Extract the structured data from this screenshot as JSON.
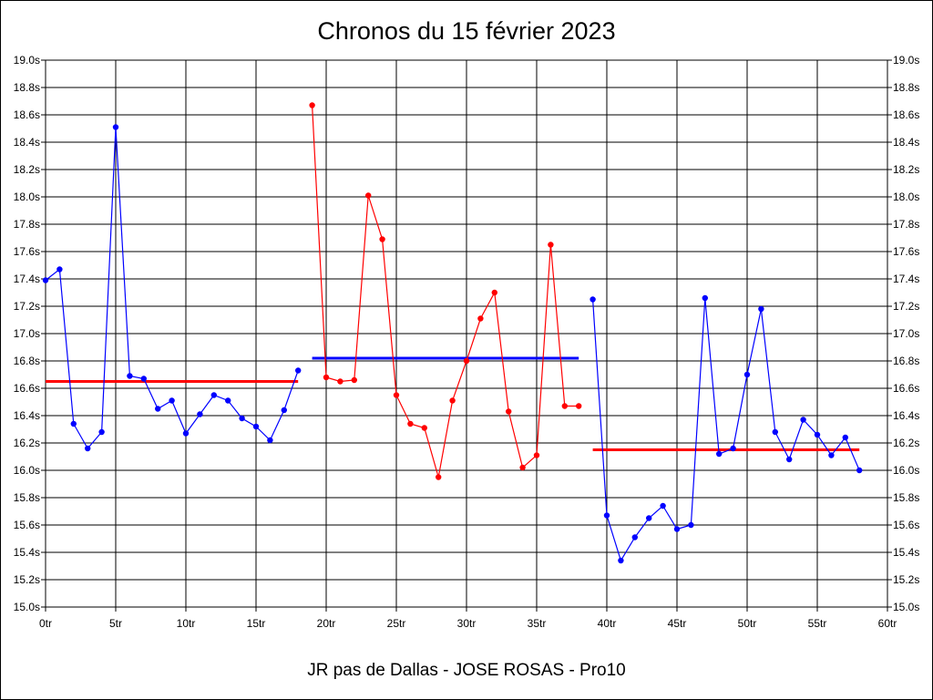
{
  "chart_data": {
    "type": "line",
    "title": "Chronos du 15 février 2023",
    "subtitle": "JR pas de Dallas - JOSE ROSAS - Pro10",
    "xlabel": "",
    "ylabel": "",
    "xlim": [
      0,
      60
    ],
    "ylim": [
      15.0,
      19.0
    ],
    "x_ticks": [
      "0tr",
      "5tr",
      "10tr",
      "15tr",
      "20tr",
      "25tr",
      "30tr",
      "35tr",
      "40tr",
      "45tr",
      "50tr",
      "55tr",
      "60tr"
    ],
    "y_ticks": [
      "19.0s",
      "18.8s",
      "18.6s",
      "18.4s",
      "18.2s",
      "18.0s",
      "17.8s",
      "17.6s",
      "17.4s",
      "17.2s",
      "17.0s",
      "16.8s",
      "16.6s",
      "16.4s",
      "16.2s",
      "16.0s",
      "15.8s",
      "15.6s",
      "15.4s",
      "15.2s",
      "15.0s"
    ],
    "grid": true,
    "legend": "none",
    "series": [
      {
        "color": "#0000ff",
        "x": [
          0,
          1,
          2,
          3,
          4,
          5,
          6,
          7,
          8,
          9,
          10,
          11,
          12,
          13,
          14,
          15,
          16,
          17,
          18
        ],
        "values": [
          17.39,
          17.47,
          16.34,
          16.16,
          16.28,
          18.51,
          16.69,
          16.67,
          16.45,
          16.51,
          16.27,
          16.41,
          16.55,
          16.51,
          16.38,
          16.32,
          16.22,
          16.44,
          16.73
        ]
      },
      {
        "color": "#ff0000",
        "x": [
          19,
          20,
          21,
          22,
          23,
          24,
          25,
          26,
          27,
          28,
          29,
          30,
          31,
          32,
          33,
          34,
          35,
          36,
          37,
          38
        ],
        "values": [
          18.67,
          16.68,
          16.65,
          16.66,
          18.01,
          17.69,
          16.55,
          16.34,
          16.31,
          15.95,
          16.51,
          16.8,
          17.11,
          17.3,
          16.43,
          16.02,
          16.11,
          17.65,
          16.47,
          16.47
        ]
      },
      {
        "color": "#0000ff",
        "x": [
          39,
          40,
          41,
          42,
          43,
          44,
          45,
          46,
          47,
          48,
          49,
          50,
          51,
          52,
          53,
          54,
          55,
          56,
          57,
          58
        ],
        "values": [
          17.25,
          15.67,
          15.34,
          15.51,
          15.65,
          15.74,
          15.57,
          15.6,
          17.26,
          16.12,
          16.16,
          16.7,
          17.18,
          16.28,
          16.08,
          16.37,
          16.26,
          16.11,
          16.24,
          16.0
        ]
      }
    ],
    "averages": [
      {
        "color": "#ff0000",
        "x": [
          0,
          18
        ],
        "value": 16.65
      },
      {
        "color": "#0000ff",
        "x": [
          19,
          38
        ],
        "value": 16.82
      },
      {
        "color": "#ff0000",
        "x": [
          39,
          58
        ],
        "value": 16.15
      }
    ]
  }
}
